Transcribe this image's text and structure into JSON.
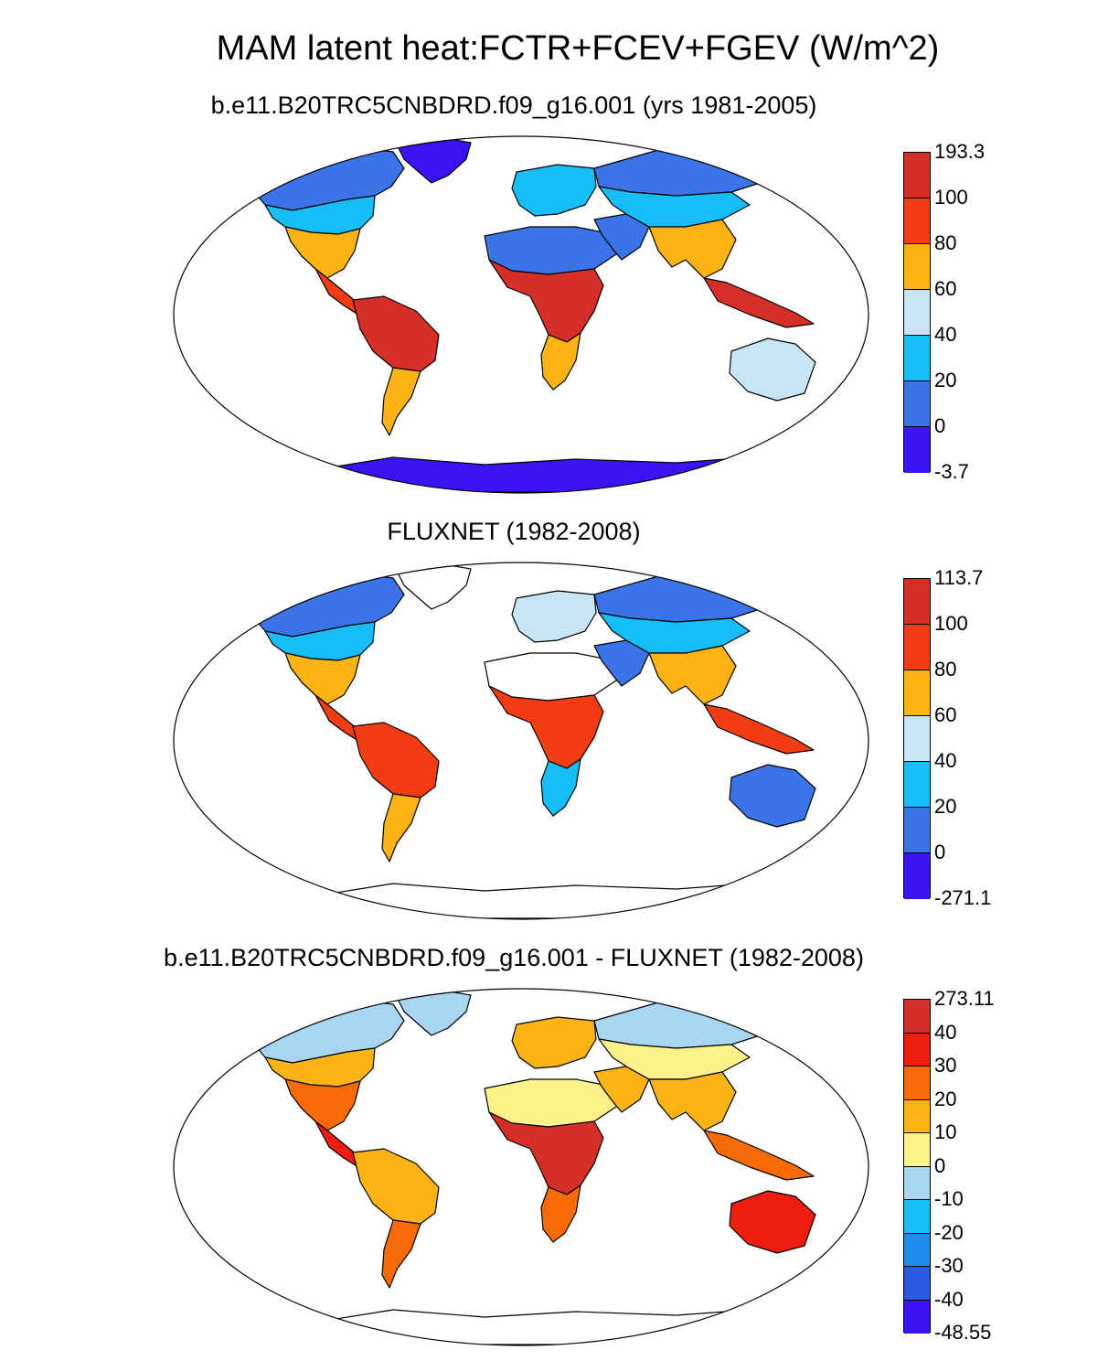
{
  "main_title": "MAM latent heat:FCTR+FCEV+FGEV (W/m^2)",
  "panels": [
    {
      "title": "b.e11.B20TRC5CNBDRD.f09_g16.001 (yrs 1981-2005)",
      "colorbar": {
        "labels": [
          "193.3",
          "100",
          "80",
          "60",
          "40",
          "20",
          "0",
          "-3.7"
        ],
        "colors": [
          "#d62f27",
          "#f23c14",
          "#fbb316",
          "#c6e6f6",
          "#16bdf6",
          "#3a74e8",
          "#3b13f5"
        ]
      }
    },
    {
      "title": "FLUXNET (1982-2008)",
      "colorbar": {
        "labels": [
          "113.7",
          "100",
          "80",
          "60",
          "40",
          "20",
          "0",
          "-271.1"
        ],
        "colors": [
          "#d62f27",
          "#f23c14",
          "#fbb316",
          "#c6e6f6",
          "#16bdf6",
          "#3a74e8",
          "#3b13f5"
        ]
      }
    },
    {
      "title": "b.e11.B20TRC5CNBDRD.f09_g16.001 - FLUXNET (1982-2008)",
      "colorbar": {
        "labels": [
          "273.11",
          "40",
          "30",
          "20",
          "10",
          "0",
          "-10",
          "-20",
          "-30",
          "-40",
          "-48.55"
        ],
        "colors": [
          "#d62f27",
          "#ef1d10",
          "#f76b07",
          "#fbb316",
          "#fdf289",
          "#a8d5f0",
          "#16bdf6",
          "#1e8cf0",
          "#2a5ae0",
          "#3b13f5"
        ]
      }
    }
  ]
}
